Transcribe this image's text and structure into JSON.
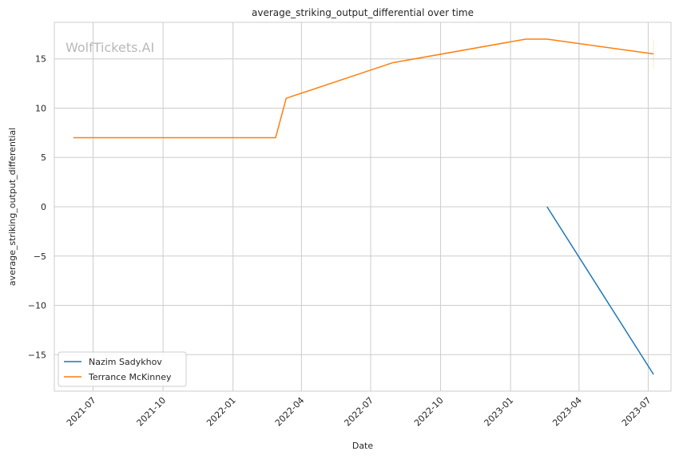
{
  "chart_data": {
    "type": "line",
    "title": "average_striking_output_differential over time",
    "xlabel": "Date",
    "ylabel": "average_striking_output_differential",
    "watermark": "WolfTickets.AI",
    "x_ticks": [
      "2021-07",
      "2021-10",
      "2022-01",
      "2022-04",
      "2022-07",
      "2022-10",
      "2023-01",
      "2023-04",
      "2023-07"
    ],
    "y_ticks": [
      -15,
      -10,
      -5,
      0,
      5,
      10,
      15
    ],
    "ylim": [
      -18.7,
      18.7
    ],
    "xlim": [
      "2021-05-11",
      "2023-07-31"
    ],
    "grid": true,
    "legend_position": "lower-left",
    "series": [
      {
        "name": "Nazim Sadykhov",
        "color": "#1f77b4",
        "points": [
          {
            "x": "2023-02-18",
            "y": 0
          },
          {
            "x": "2023-07-08",
            "y": -17
          }
        ]
      },
      {
        "name": "Terrance McKinney",
        "color": "#ff7f0e",
        "points": [
          {
            "x": "2021-06-05",
            "y": 7
          },
          {
            "x": "2022-02-26",
            "y": 7
          },
          {
            "x": "2022-03-12",
            "y": 11
          },
          {
            "x": "2022-07-30",
            "y": 14.6
          },
          {
            "x": "2023-01-21",
            "y": 17
          },
          {
            "x": "2023-02-18",
            "y": 17
          },
          {
            "x": "2023-07-08",
            "y": 15.5
          }
        ]
      }
    ]
  }
}
